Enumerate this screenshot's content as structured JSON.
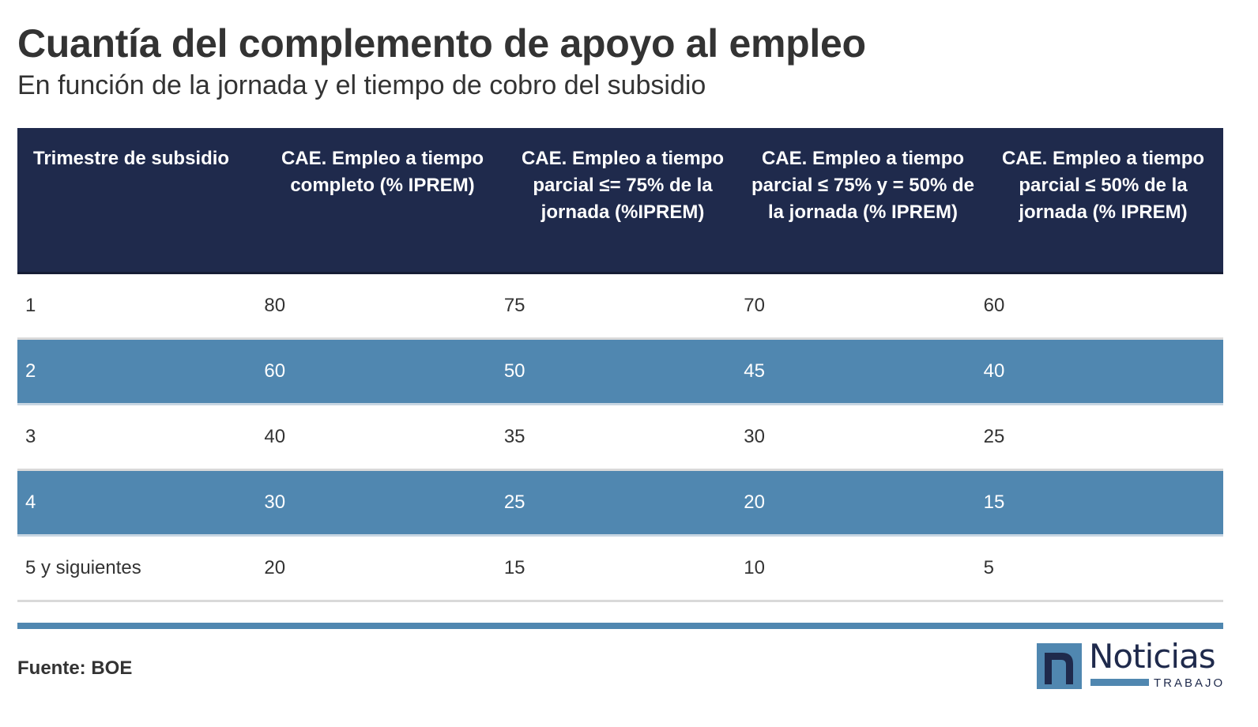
{
  "title": "Cuantía del complemento de apoyo al empleo",
  "subtitle": "En función de la jornada y el tiempo de cobro del subsidio",
  "source": "Fuente: BOE",
  "logo": {
    "name": "Noticias",
    "sub": "TRABAJO"
  },
  "colors": {
    "header": "#1f2a4c",
    "accent": "#5087b0",
    "text": "#333333"
  },
  "chart_data": {
    "type": "table",
    "columns": [
      "Trimestre de subsidio",
      "CAE. Empleo a tiempo completo (% IPREM)",
      "CAE. Empleo a tiempo parcial ≤= 75% de la jornada (%IPREM)",
      "CAE. Empleo a tiempo parcial ≤ 75% y = 50% de la jornada (% IPREM)",
      "CAE. Empleo a tiempo parcial ≤ 50% de la jornada (% IPREM)"
    ],
    "rows": [
      [
        "1",
        "80",
        "75",
        "70",
        "60"
      ],
      [
        "2",
        "60",
        "50",
        "45",
        "40"
      ],
      [
        "3",
        "40",
        "35",
        "30",
        "25"
      ],
      [
        "4",
        "30",
        "25",
        "20",
        "15"
      ],
      [
        "5 y siguientes",
        "20",
        "15",
        "10",
        "5"
      ]
    ]
  }
}
